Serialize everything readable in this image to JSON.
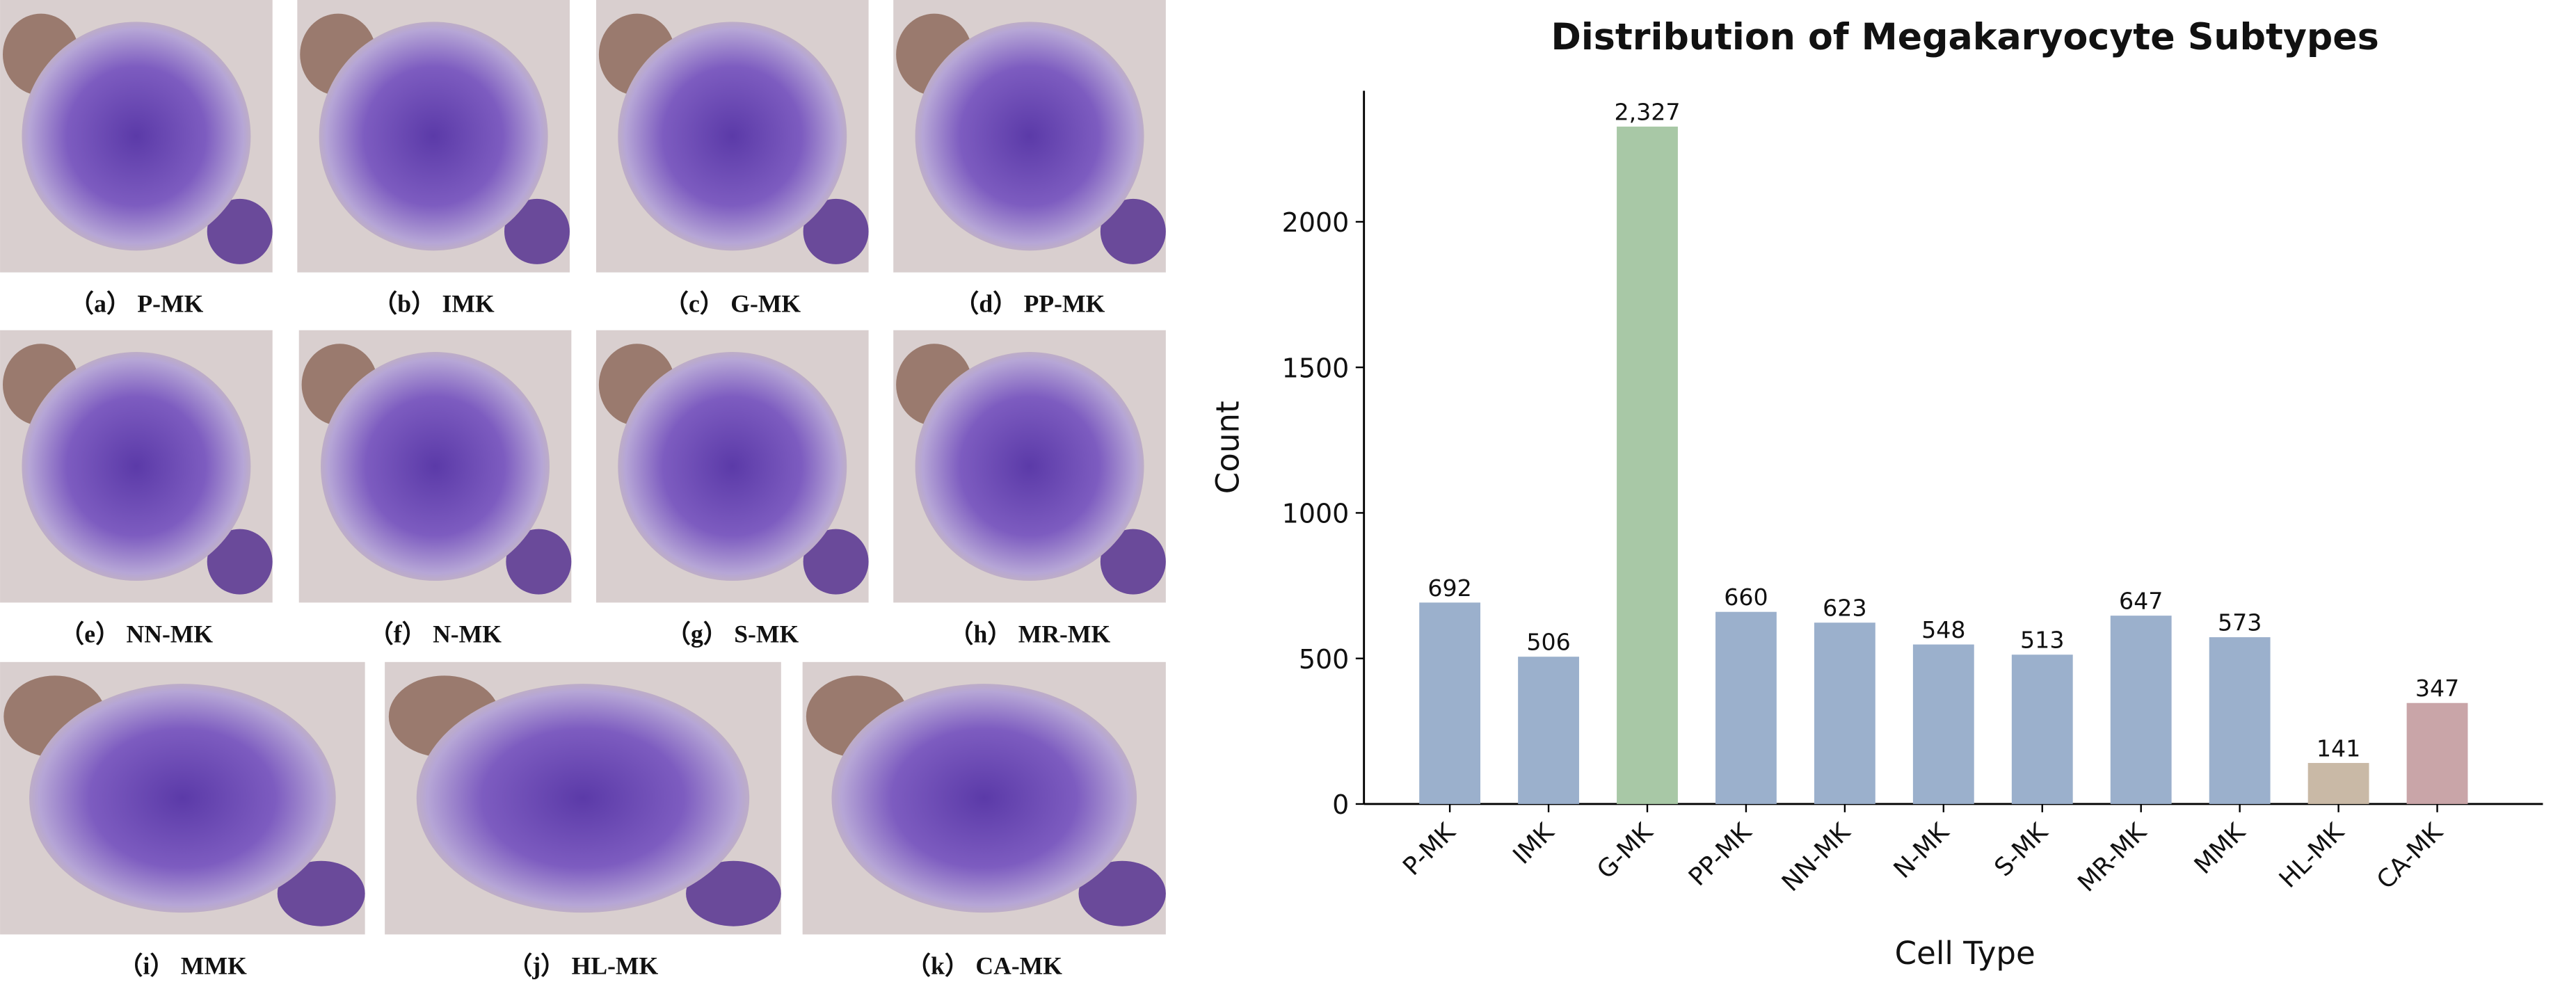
{
  "figure_panels": [
    {
      "label": "（a） P-MK"
    },
    {
      "label": "（b） IMK"
    },
    {
      "label": "（c） G-MK"
    },
    {
      "label": "（d） PP-MK"
    },
    {
      "label": "（e） NN-MK"
    },
    {
      "label": "（f） N-MK"
    },
    {
      "label": "（g） S-MK"
    },
    {
      "label": "（h） MR-MK"
    },
    {
      "label": "（i） MMK"
    },
    {
      "label": "（j） HL-MK"
    },
    {
      "label": "（k） CA-MK"
    }
  ],
  "chart_data": {
    "type": "bar",
    "title": "Distribution of Megakaryocyte Subtypes",
    "x_label": "Cell Type",
    "y_label": "Count",
    "categories": [
      "P-MK",
      "IMK",
      "G-MK",
      "PP-MK",
      "NN-MK",
      "N-MK",
      "S-MK",
      "MR-MK",
      "MMK",
      "HL-MK",
      "CA-MK"
    ],
    "values": [
      692,
      506,
      2327,
      660,
      623,
      548,
      513,
      647,
      573,
      141,
      347
    ],
    "value_labels": [
      "692",
      "506",
      "2,327",
      "660",
      "623",
      "548",
      "513",
      "647",
      "573",
      "141",
      "347"
    ],
    "colors": [
      "#9bb0cc",
      "#9bb0cc",
      "#a8c8a6",
      "#9bb0cc",
      "#9bb0cc",
      "#9bb0cc",
      "#9bb0cc",
      "#9bb0cc",
      "#9bb0cc",
      "#c9b9a6",
      "#c9a5a8"
    ],
    "ylim": [
      0,
      2450
    ],
    "yticks": [
      0,
      500,
      1000,
      1500,
      2000
    ],
    "grid": false
  }
}
